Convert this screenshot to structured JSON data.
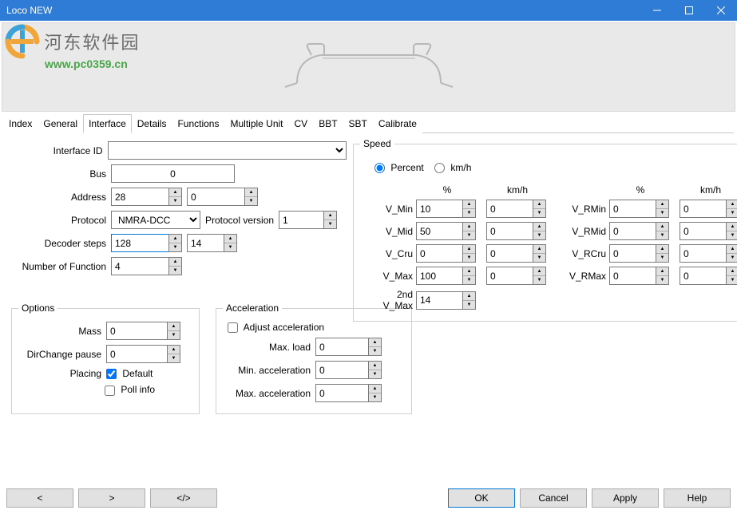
{
  "window": {
    "title": "Loco NEW"
  },
  "watermark": {
    "text_cn": "河东软件园",
    "url": "www.pc0359.cn"
  },
  "tabs": [
    "Index",
    "General",
    "Interface",
    "Details",
    "Functions",
    "Multiple Unit",
    "CV",
    "BBT",
    "SBT",
    "Calibrate"
  ],
  "active_tab": "Interface",
  "interface": {
    "interface_id_label": "Interface ID",
    "interface_id": "",
    "bus_label": "Bus",
    "bus": "0",
    "address_label": "Address",
    "address1": "28",
    "address2": "0",
    "protocol_label": "Protocol",
    "protocol": "NMRA-DCC",
    "protocol_version_label": "Protocol version",
    "protocol_version": "1",
    "decoder_steps_label": "Decoder steps",
    "decoder_steps1": "128",
    "decoder_steps2": "14",
    "num_func_label": "Number of Function",
    "num_func": "4"
  },
  "speed": {
    "legend": "Speed",
    "unit_percent": "Percent",
    "unit_kmh": "km/h",
    "hdr_pct": "%",
    "hdr_kmh": "km/h",
    "rows": [
      {
        "l": "V_Min",
        "p": "10",
        "k": "0",
        "rl": "V_RMin",
        "rp": "0",
        "rk": "0"
      },
      {
        "l": "V_Mid",
        "p": "50",
        "k": "0",
        "rl": "V_RMid",
        "rp": "0",
        "rk": "0"
      },
      {
        "l": "V_Cru",
        "p": "0",
        "k": "0",
        "rl": "V_RCru",
        "rp": "0",
        "rk": "0"
      },
      {
        "l": "V_Max",
        "p": "100",
        "k": "0",
        "rl": "V_RMax",
        "rp": "0",
        "rk": "0"
      }
    ],
    "vmax2_label": "2nd V_Max",
    "vmax2": "14"
  },
  "options": {
    "legend": "Options",
    "mass_label": "Mass",
    "mass": "0",
    "dirchange_label": "DirChange pause",
    "dirchange": "0",
    "placing_label": "Placing",
    "default_label": "Default",
    "default_checked": true,
    "pollinfo_label": "Poll info",
    "pollinfo_checked": false
  },
  "accel": {
    "legend": "Acceleration",
    "adjust_label": "Adjust acceleration",
    "adjust_checked": false,
    "maxload_label": "Max. load",
    "maxload": "0",
    "minacc_label": "Min. acceleration",
    "minacc": "0",
    "maxacc_label": "Max. acceleration",
    "maxacc": "0"
  },
  "footer": {
    "prev": "<",
    "next": ">",
    "code": "</>",
    "ok": "OK",
    "cancel": "Cancel",
    "apply": "Apply",
    "help": "Help"
  },
  "colors": {
    "titlebar": "#2f7cd6",
    "border": "#c8c8c8",
    "btn_bg": "#e1e1e1",
    "highlight": "#0078d7",
    "header_bg": "#e9e9e9"
  }
}
